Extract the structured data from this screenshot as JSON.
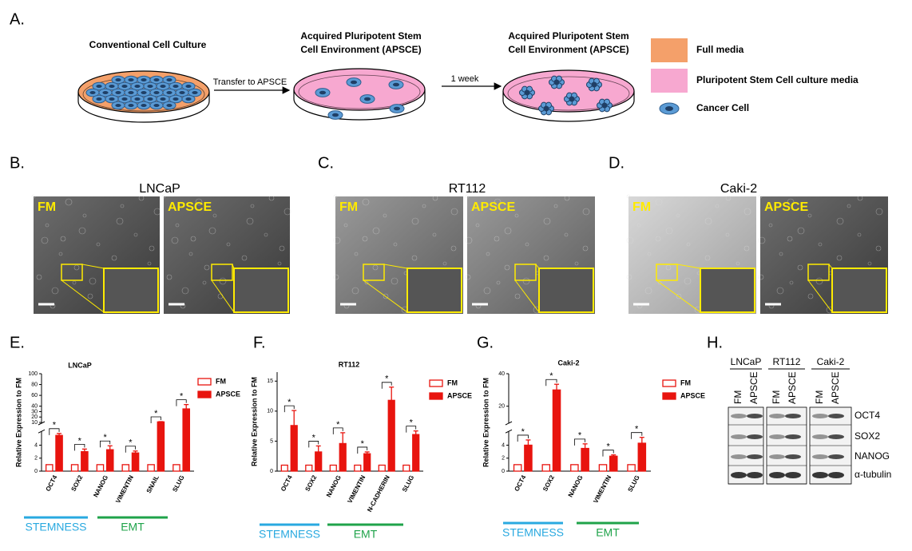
{
  "panel_labels": [
    "A.",
    "B.",
    "C.",
    "D.",
    "E.",
    "F.",
    "G.",
    "H."
  ],
  "diagram": {
    "dishes": [
      {
        "title_lines": [
          "Conventional Cell Culture"
        ],
        "color": "#f4a06a"
      },
      {
        "title_lines": [
          "Acquired Pluripotent Stem",
          "Cell Environment (APSCE)"
        ],
        "color": "#f7a8d0"
      },
      {
        "title_lines": [
          "Acquired Pluripotent Stem",
          "Cell Environment (APSCE)"
        ],
        "color": "#f7a8d0"
      }
    ],
    "arrows": [
      "Transfer to APSCE",
      "1 week"
    ],
    "legend": [
      {
        "label": "Full media",
        "color": "#f4a06a"
      },
      {
        "label": "Pluripotent Stem Cell culture media",
        "color": "#f7a8d0"
      },
      {
        "label": "Cancer Cell",
        "color": "#5b9bd5"
      }
    ]
  },
  "micrographs": [
    {
      "title": "LNCaP",
      "conditions": [
        "FM",
        "APSCE"
      ]
    },
    {
      "title": "RT112",
      "conditions": [
        "FM",
        "APSCE"
      ]
    },
    {
      "title": "Caki-2",
      "conditions": [
        "FM",
        "APSCE"
      ]
    }
  ],
  "chart_data": [
    {
      "type": "bar",
      "title": "LNCaP",
      "ylabel": "Relative Expression to FM",
      "categories": [
        "OCT4",
        "SOX2",
        "NANOG",
        "VIMENTIN",
        "SNAIL",
        "SLUG"
      ],
      "series": [
        {
          "name": "FM",
          "color": "#e8140e",
          "hollow": true,
          "values": [
            1,
            1,
            1,
            1,
            1,
            1
          ]
        },
        {
          "name": "APSCE",
          "color": "#e8140e",
          "hollow": false,
          "values": [
            5.5,
            3,
            3.3,
            2.8,
            11,
            35
          ],
          "errors": [
            0.3,
            0.4,
            0.6,
            0.3,
            0.5,
            8
          ]
        }
      ],
      "significance": [
        "*",
        "*",
        "*",
        "*",
        "*",
        "*"
      ],
      "ylim": [
        0,
        100
      ],
      "ybreak": [
        6,
        10
      ],
      "yticks": [
        0,
        2,
        4,
        10,
        20,
        30,
        40,
        60,
        80,
        100
      ],
      "groups": [
        {
          "label": "STEMNESS",
          "color": "#29a9e0"
        },
        {
          "label": "EMT",
          "color": "#1fa34a"
        }
      ]
    },
    {
      "type": "bar",
      "title": "RT112",
      "ylabel": "Relative Expression to FM",
      "categories": [
        "OCT4",
        "SOX2",
        "NANOG",
        "VIMENTIN",
        "N-CADHERIN",
        "SLUG"
      ],
      "series": [
        {
          "name": "FM",
          "color": "#e8140e",
          "hollow": true,
          "values": [
            1,
            1,
            1,
            1,
            1,
            1
          ]
        },
        {
          "name": "APSCE",
          "color": "#e8140e",
          "hollow": false,
          "values": [
            7.6,
            3.2,
            4.6,
            2.9,
            11.8,
            6.1
          ],
          "errors": [
            2.5,
            1,
            1.8,
            0.3,
            2.2,
            0.6
          ]
        }
      ],
      "significance": [
        "*",
        "*",
        "*",
        "*",
        "*",
        "*"
      ],
      "ylim": [
        0,
        16.5
      ],
      "yticks": [
        0,
        5,
        10,
        15
      ],
      "groups": [
        {
          "label": "STEMNESS",
          "color": "#29a9e0"
        },
        {
          "label": "EMT",
          "color": "#1fa34a"
        }
      ]
    },
    {
      "type": "bar",
      "title": "Caki-2",
      "ylabel": "Relative Expression to FM",
      "categories": [
        "OCT4",
        "SOX2",
        "NANOG",
        "VIMENTIN",
        "SLUG"
      ],
      "series": [
        {
          "name": "FM",
          "color": "#e8140e",
          "hollow": true,
          "values": [
            1,
            1,
            1,
            1,
            1
          ]
        },
        {
          "name": "APSCE",
          "color": "#e8140e",
          "hollow": false,
          "values": [
            4,
            30,
            3.5,
            2.3,
            4.3
          ],
          "errors": [
            0.8,
            3.5,
            0.7,
            0.2,
            0.9
          ]
        }
      ],
      "significance": [
        "*",
        "*",
        "*",
        "*",
        "*"
      ],
      "ylim": [
        0,
        40
      ],
      "ybreak": [
        6,
        10
      ],
      "yticks": [
        0,
        2,
        4,
        20,
        40
      ],
      "groups": [
        {
          "label": "STEMNESS",
          "color": "#29a9e0"
        },
        {
          "label": "EMT",
          "color": "#1fa34a"
        }
      ]
    }
  ],
  "western_blot": {
    "cell_lines": [
      {
        "name": "LNCaP",
        "lanes": [
          "FM",
          "APSCE"
        ]
      },
      {
        "name": "RT112",
        "lanes": [
          "FM",
          "APSCE"
        ]
      },
      {
        "name": "Caki-2",
        "lanes": [
          "FM",
          "APSCE"
        ]
      }
    ],
    "proteins": [
      "OCT4",
      "SOX2",
      "NANOG",
      "α-tubulin"
    ]
  }
}
